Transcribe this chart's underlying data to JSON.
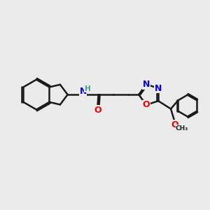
{
  "bg_color": "#ebebeb",
  "bond_color": "#1a1a1a",
  "bond_width": 1.8,
  "atom_colors": {
    "N": "#0000ee",
    "O": "#ee0000",
    "C": "#1a1a1a",
    "H": "#4a9a9a"
  },
  "font_size_atom": 9,
  "font_size_small": 7.5,
  "font_size_tiny": 6.5
}
